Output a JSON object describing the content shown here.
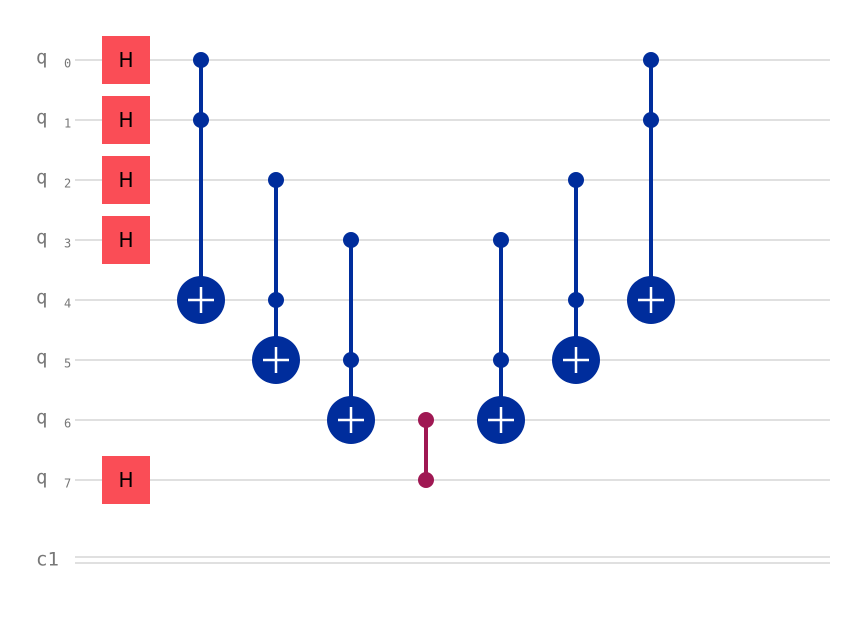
{
  "wires": [
    {
      "name": "q",
      "index": "0"
    },
    {
      "name": "q",
      "index": "1"
    },
    {
      "name": "q",
      "index": "2"
    },
    {
      "name": "q",
      "index": "3"
    },
    {
      "name": "q",
      "index": "4"
    },
    {
      "name": "q",
      "index": "5"
    },
    {
      "name": "q",
      "index": "6"
    },
    {
      "name": "q",
      "index": "7"
    }
  ],
  "classical": {
    "name": "c1"
  },
  "h_gates": [
    "H",
    "H",
    "H",
    "H",
    "H"
  ]
}
